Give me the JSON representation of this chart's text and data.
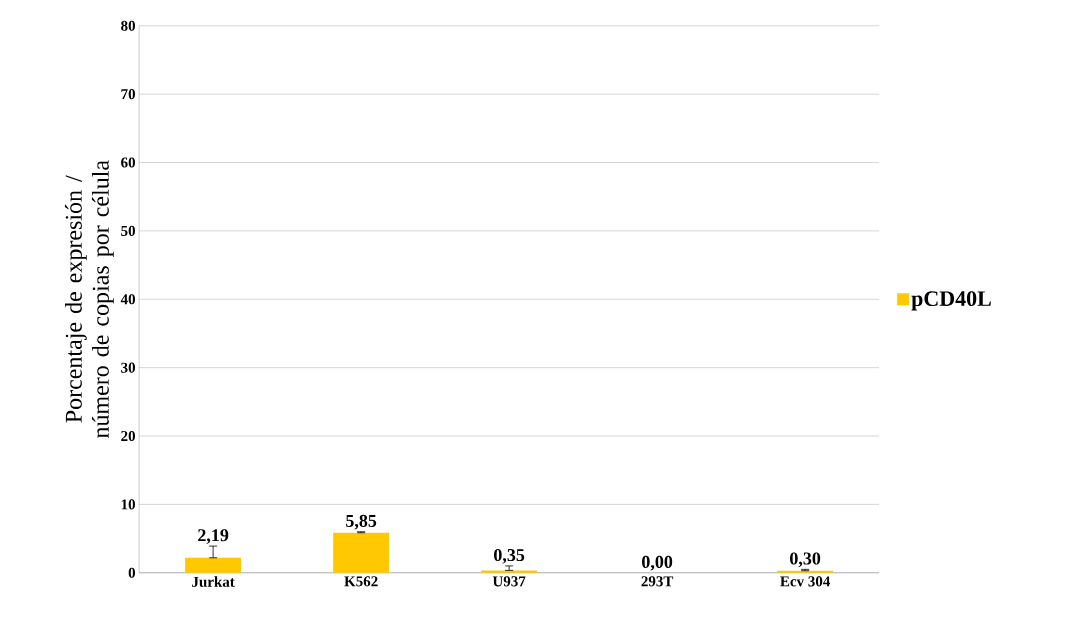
{
  "chart_data": {
    "type": "bar",
    "ylabel": "Porcentaje de expresión / número de copias por célula",
    "categories": [
      "Jurkat",
      "K562",
      "U937",
      "293T",
      "Ecv 304"
    ],
    "series": [
      {
        "name": "pCD40L",
        "color": "#ffc800",
        "values": [
          2.19,
          5.85,
          0.35,
          0.0,
          0.3
        ],
        "errors": [
          [
            2.19,
            3.9
          ],
          [
            5.85,
            6.0
          ],
          [
            0.35,
            1.0
          ],
          null,
          [
            0.3,
            0.5
          ]
        ],
        "value_labels": [
          "2,19",
          "5,85",
          "0,35",
          "0,00",
          "0,30"
        ]
      }
    ],
    "ylim": [
      0,
      80
    ],
    "yticks": [
      0,
      10,
      20,
      30,
      40,
      50,
      60,
      70,
      80
    ],
    "grid": "y",
    "legend": "right"
  }
}
